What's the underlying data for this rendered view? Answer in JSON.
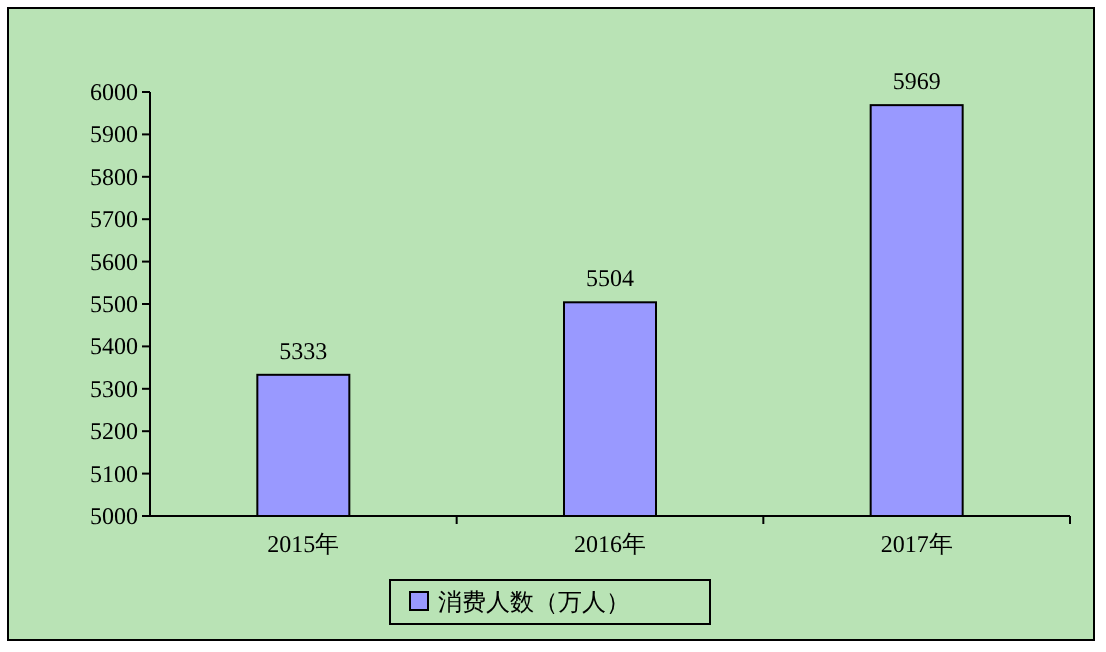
{
  "chart_data": {
    "type": "bar",
    "categories": [
      "2015年",
      "2016年",
      "2017年"
    ],
    "series": [
      {
        "name": "消费人数（万人）",
        "color": "#9999ff",
        "values": [
          5333,
          5504,
          5969
        ]
      }
    ],
    "ylim": [
      5000,
      6000
    ],
    "yticks": [
      5000,
      5100,
      5200,
      5300,
      5400,
      5500,
      5600,
      5700,
      5800,
      5900,
      6000
    ],
    "data_labels": true,
    "legend": "bottom",
    "grid": false
  }
}
